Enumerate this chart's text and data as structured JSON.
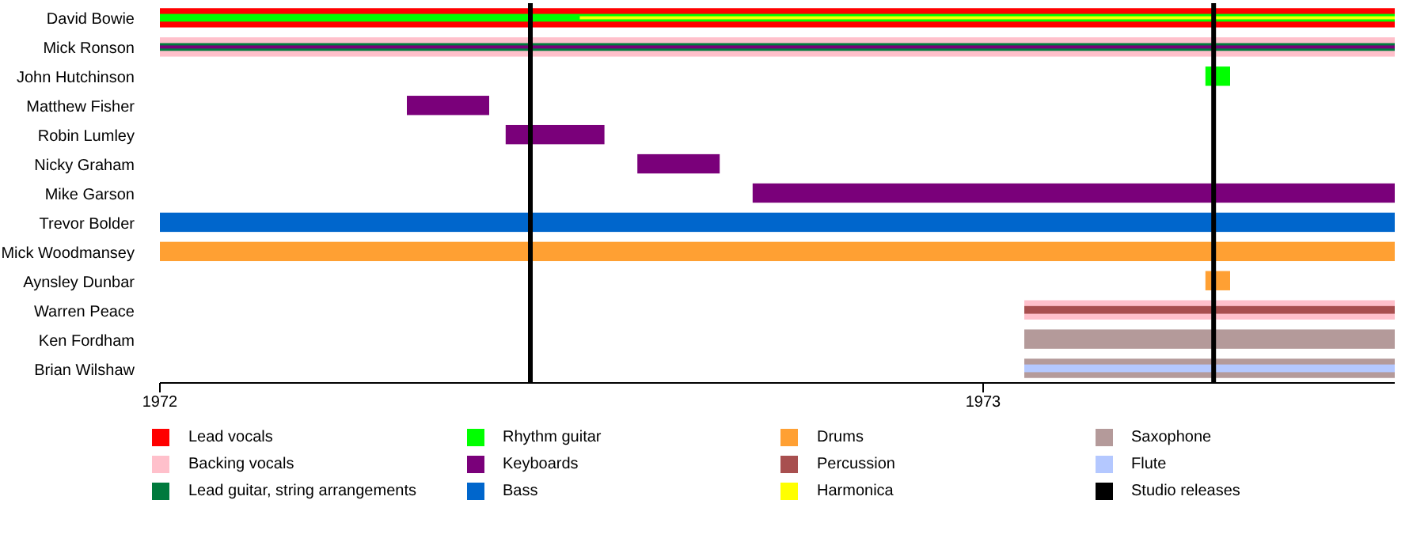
{
  "chart_data": {
    "type": "bar",
    "orientation": "horizontal",
    "categories": [
      "David Bowie",
      "Mick Ronson",
      "John Hutchinson",
      "Matthew Fisher",
      "Robin Lumley",
      "Nicky Graham",
      "Mike Garson",
      "Trevor Bolder",
      "Mick Woodmansey",
      "Aynsley Dunbar",
      "Warren Peace",
      "Ken Fordham",
      "Brian Wilshaw"
    ],
    "xlim": [
      1972,
      1973.5
    ],
    "xticks": [
      1972,
      1973
    ],
    "legend": "bottom",
    "series": [
      {
        "name": "Lead vocals",
        "color": "#ff0000",
        "base": [
          1972,
          null,
          null,
          null,
          null,
          null,
          null,
          null,
          null,
          null,
          null,
          null,
          null
        ],
        "values": [
          1.5,
          null,
          null,
          null,
          null,
          null,
          null,
          null,
          null,
          null,
          null,
          null,
          null
        ]
      },
      {
        "name": "Backing vocals",
        "color": "#ffc0cb",
        "base": [
          null,
          1972,
          null,
          null,
          null,
          null,
          null,
          null,
          null,
          null,
          1973.05,
          null,
          null
        ],
        "values": [
          null,
          1.5,
          null,
          null,
          null,
          null,
          null,
          null,
          null,
          null,
          0.45,
          null,
          null
        ]
      },
      {
        "name": "Lead guitar, string arrangements",
        "color": "#007a3d",
        "base": [
          null,
          1972,
          null,
          null,
          null,
          null,
          null,
          null,
          null,
          null,
          null,
          null,
          null
        ],
        "values": [
          null,
          1.5,
          null,
          null,
          null,
          null,
          null,
          null,
          null,
          null,
          null,
          null,
          null
        ]
      },
      {
        "name": "Rhythm guitar",
        "color": "#00ff00",
        "base": [
          1972,
          null,
          1973.27,
          null,
          null,
          null,
          null,
          null,
          null,
          null,
          null,
          null,
          null
        ],
        "values": [
          1.5,
          null,
          0.03,
          null,
          null,
          null,
          null,
          null,
          null,
          null,
          null,
          null,
          null
        ]
      },
      {
        "name": "Keyboards",
        "color": "#7a007a",
        "base": [
          null,
          1972,
          null,
          1972.3,
          1972.42,
          1972.58,
          1972.72,
          null,
          null,
          null,
          null,
          null,
          null
        ],
        "values": [
          null,
          1.5,
          null,
          0.1,
          0.12,
          0.1,
          0.78,
          null,
          null,
          null,
          null,
          null,
          null
        ]
      },
      {
        "name": "Bass",
        "color": "#0066cc",
        "base": [
          null,
          null,
          null,
          null,
          null,
          null,
          null,
          1972,
          null,
          null,
          null,
          null,
          null
        ],
        "values": [
          null,
          null,
          null,
          null,
          null,
          null,
          null,
          1.5,
          null,
          null,
          null,
          null,
          null
        ]
      },
      {
        "name": "Drums",
        "color": "#ffa033",
        "base": [
          null,
          null,
          null,
          null,
          null,
          null,
          null,
          null,
          1972,
          1973.27,
          null,
          null,
          null
        ],
        "values": [
          null,
          null,
          null,
          null,
          null,
          null,
          null,
          null,
          1.5,
          0.03,
          null,
          null,
          null
        ]
      },
      {
        "name": "Percussion",
        "color": "#a84f4f",
        "base": [
          null,
          null,
          null,
          null,
          null,
          null,
          null,
          null,
          null,
          null,
          1973.05,
          null,
          null
        ],
        "values": [
          null,
          null,
          null,
          null,
          null,
          null,
          null,
          null,
          null,
          null,
          0.45,
          null,
          null
        ]
      },
      {
        "name": "Harmonica",
        "color": "#ffff00",
        "base": [
          1972.51,
          null,
          null,
          null,
          null,
          null,
          null,
          null,
          null,
          null,
          null,
          null,
          null
        ],
        "values": [
          0.99,
          null,
          null,
          null,
          null,
          null,
          null,
          null,
          null,
          null,
          null,
          null,
          null
        ]
      },
      {
        "name": "Saxophone",
        "color": "#b49a9a",
        "base": [
          null,
          null,
          null,
          null,
          null,
          null,
          null,
          null,
          null,
          null,
          null,
          1973.05,
          1973.05
        ],
        "values": [
          null,
          null,
          null,
          null,
          null,
          null,
          null,
          null,
          null,
          null,
          null,
          0.45,
          0.45
        ]
      },
      {
        "name": "Flute",
        "color": "#b4c8ff",
        "base": [
          null,
          null,
          null,
          null,
          null,
          null,
          null,
          null,
          null,
          null,
          null,
          null,
          1973.05
        ],
        "values": [
          null,
          null,
          null,
          null,
          null,
          null,
          null,
          null,
          null,
          null,
          null,
          null,
          0.45
        ]
      }
    ],
    "ref_lines": [
      {
        "axis": "x",
        "value": 1972.45,
        "label": "Studio releases",
        "color": "#000000"
      },
      {
        "axis": "x",
        "value": 1973.28,
        "color": "#000000"
      }
    ]
  }
}
